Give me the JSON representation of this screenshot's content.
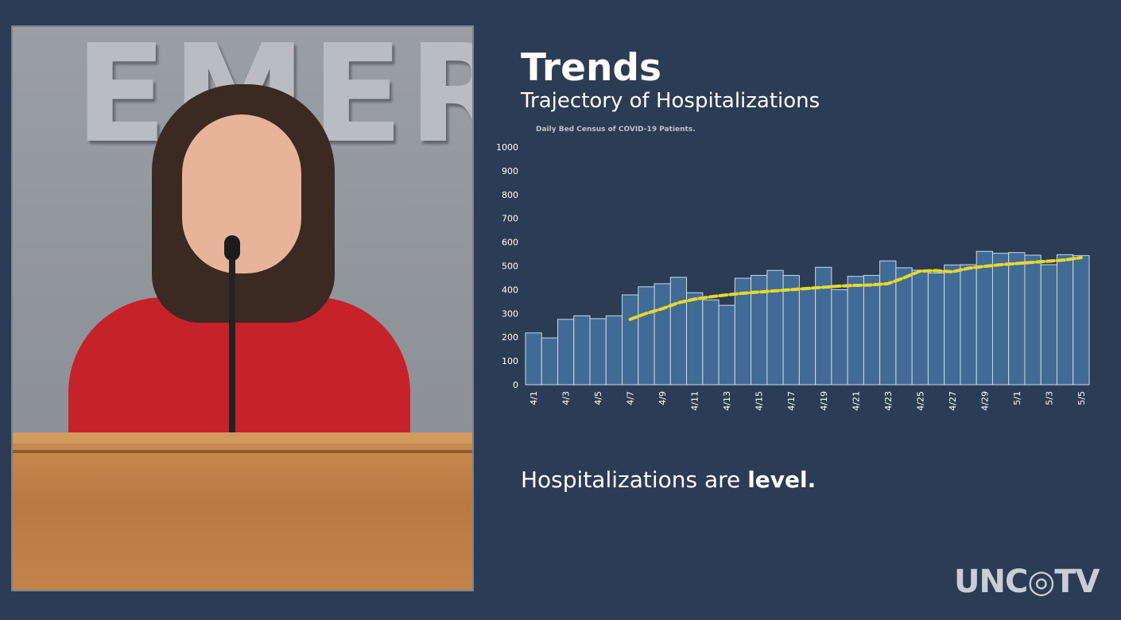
{
  "video": {
    "wall_sign": "EMERG"
  },
  "slide": {
    "title": "Trends",
    "subtitle": "Trajectory of Hospitalizations",
    "caption_prefix": "Hospitalizations are ",
    "caption_bold": "level."
  },
  "logo": {
    "text": "UNC◎TV"
  },
  "colors": {
    "background": "#2b3c55",
    "bar_fill": "#3f6b95",
    "bar_stroke": "#cfd9e4",
    "trend_line": "#e8d82c",
    "text": "#ffffff"
  },
  "chart_data": {
    "type": "bar",
    "title": "Daily Bed Census of COVID-19 Patients.",
    "xlabel": "",
    "ylabel": "",
    "ylim": [
      0,
      1000
    ],
    "yticks": [
      0,
      100,
      200,
      300,
      400,
      500,
      600,
      700,
      800,
      900,
      1000
    ],
    "categories": [
      "4/1",
      "4/2",
      "4/3",
      "4/4",
      "4/5",
      "4/6",
      "4/7",
      "4/8",
      "4/9",
      "4/10",
      "4/11",
      "4/12",
      "4/13",
      "4/14",
      "4/15",
      "4/16",
      "4/17",
      "4/18",
      "4/19",
      "4/20",
      "4/21",
      "4/22",
      "4/23",
      "4/24",
      "4/25",
      "4/26",
      "4/27",
      "4/28",
      "4/29",
      "4/30",
      "5/1",
      "5/2",
      "5/3",
      "5/4",
      "5/5"
    ],
    "tick_labels": [
      "4/1",
      "4/3",
      "4/5",
      "4/7",
      "4/9",
      "4/11",
      "4/13",
      "4/15",
      "4/17",
      "4/19",
      "4/21",
      "4/23",
      "4/25",
      "4/27",
      "4/29",
      "5/1",
      "5/3",
      "5/5"
    ],
    "values": [
      218,
      197,
      275,
      290,
      278,
      290,
      378,
      412,
      425,
      452,
      387,
      357,
      334,
      448,
      460,
      481,
      460,
      406,
      494,
      400,
      456,
      460,
      521,
      492,
      482,
      470,
      504,
      505,
      561,
      553,
      556,
      545,
      505,
      547,
      543
    ],
    "trend": {
      "style": "dashed",
      "x": [
        "4/7",
        "4/8",
        "4/9",
        "4/10",
        "4/11",
        "4/12",
        "4/13",
        "4/14",
        "4/15",
        "4/16",
        "4/17",
        "4/18",
        "4/19",
        "4/20",
        "4/21",
        "4/22",
        "4/23",
        "4/24",
        "4/25",
        "4/26",
        "4/27",
        "4/28",
        "4/29",
        "4/30",
        "5/1",
        "5/2",
        "5/3",
        "5/4",
        "5/5"
      ],
      "values": [
        275,
        300,
        320,
        345,
        360,
        370,
        378,
        385,
        390,
        395,
        400,
        405,
        410,
        415,
        418,
        420,
        425,
        450,
        478,
        480,
        475,
        490,
        498,
        505,
        510,
        515,
        520,
        525,
        535
      ]
    }
  }
}
